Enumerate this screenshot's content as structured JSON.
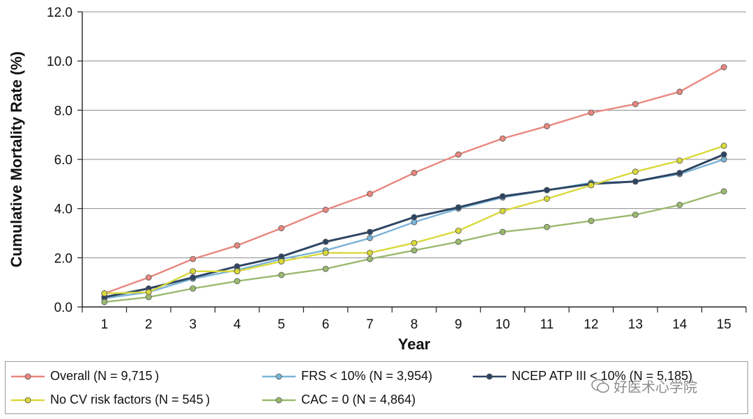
{
  "chart_data": {
    "type": "line",
    "xlabel": "Year",
    "ylabel": "Cumulative Mortality Rate (%)",
    "x": [
      1,
      2,
      3,
      4,
      5,
      6,
      7,
      8,
      9,
      10,
      11,
      12,
      13,
      14,
      15
    ],
    "xlim": [
      0.5,
      15.5
    ],
    "ylim": [
      0,
      12
    ],
    "y_ticks": [
      "0.0",
      "2.0",
      "4.0",
      "6.0",
      "8.0",
      "10.0",
      "12.0"
    ],
    "x_ticks": [
      "1",
      "2",
      "3",
      "4",
      "5",
      "6",
      "7",
      "8",
      "9",
      "10",
      "11",
      "12",
      "13",
      "14",
      "15"
    ],
    "grid": "horizontal",
    "legend_position": "bottom",
    "series": [
      {
        "name": "Overall (N = 9,715 )",
        "color": "#e8877f",
        "values": [
          0.55,
          1.2,
          1.95,
          2.5,
          3.2,
          3.95,
          4.6,
          5.45,
          6.2,
          6.85,
          7.35,
          7.9,
          8.25,
          8.75,
          9.75
        ]
      },
      {
        "name": "FRS < 10% (N = 3,954)",
        "color": "#7ab3d6",
        "values": [
          0.35,
          0.6,
          1.15,
          1.5,
          1.95,
          2.3,
          2.8,
          3.45,
          4.0,
          4.45,
          4.75,
          5.05,
          5.1,
          5.4,
          6.0
        ]
      },
      {
        "name": "NCEP ATP III < 10% (N = 5,185)",
        "color": "#2e4563",
        "values": [
          0.4,
          0.75,
          1.2,
          1.65,
          2.05,
          2.65,
          3.05,
          3.65,
          4.05,
          4.5,
          4.75,
          5.0,
          5.1,
          5.45,
          6.2
        ]
      },
      {
        "name": "No CV risk factors (N = 545 )",
        "color": "#d9d93a",
        "values": [
          0.55,
          0.6,
          1.45,
          1.45,
          1.85,
          2.2,
          2.2,
          2.6,
          3.1,
          3.9,
          4.4,
          4.95,
          5.5,
          5.95,
          6.55
        ]
      },
      {
        "name": "CAC = 0 (N = 4,864)",
        "color": "#9aba6e",
        "values": [
          0.2,
          0.4,
          0.75,
          1.05,
          1.3,
          1.55,
          1.95,
          2.3,
          2.65,
          3.05,
          3.25,
          3.5,
          3.75,
          4.15,
          4.7
        ]
      }
    ]
  },
  "watermark": {
    "text": "好医术心学院"
  }
}
